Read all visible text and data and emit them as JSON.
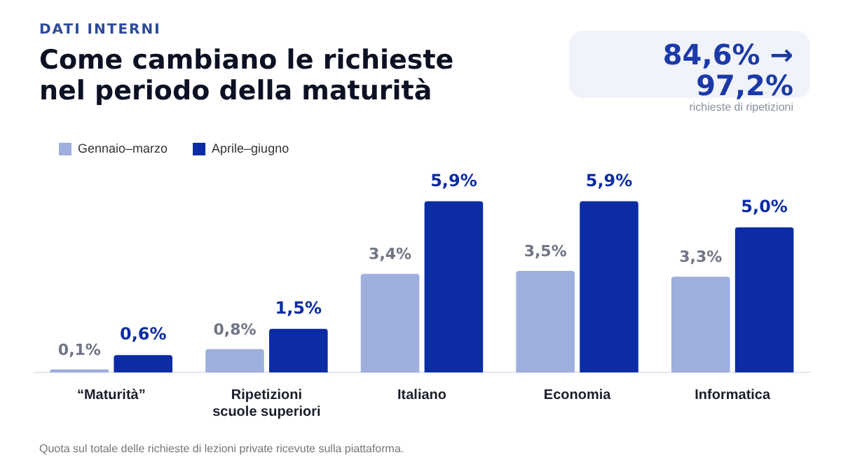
{
  "chart_data": {
    "type": "bar",
    "subtitle": "DATI INTERNI",
    "title": "Come cambiano le richieste nel periodo della maturità",
    "categories": [
      "“Maturità”",
      "Ripetizioni scuole superiori",
      "Italiano",
      "Economia",
      "Informatica"
    ],
    "series": [
      {
        "name": "Gennaio–marzo",
        "color": "#9eaedd",
        "values": [
          0.1,
          0.8,
          3.4,
          3.5,
          3.3
        ],
        "value_labels": [
          "0,1%",
          "0,8%",
          "3,4%",
          "3,5%",
          "3,3%"
        ]
      },
      {
        "name": "Aprile–giugno",
        "color": "#0b2ca4",
        "values": [
          0.6,
          1.5,
          5.9,
          5.9,
          5.0
        ],
        "value_labels": [
          "0,6%",
          "1,5%",
          "5,9%",
          "5,9%",
          "5,0%"
        ]
      }
    ],
    "legend": "top left",
    "grid": false,
    "annotations": [
      "84,6% → 97,2%",
      "richieste di ripetizioni",
      "Quota sul totale delle richieste di lezioni private ricevute sulla piattaforma."
    ]
  }
}
